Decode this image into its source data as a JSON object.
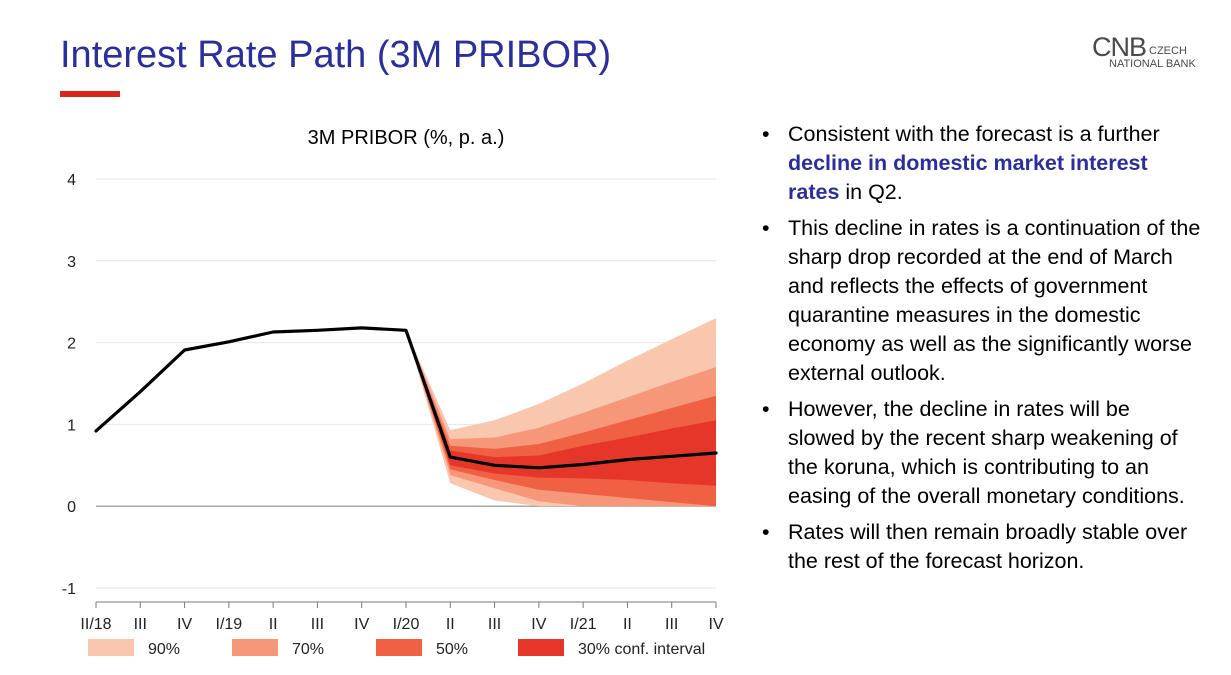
{
  "slide": {
    "title": "Interest Rate Path (3M PRIBOR)"
  },
  "logo": {
    "mark": "CNB",
    "line1": "CZECH",
    "line2": "NATIONAL BANK"
  },
  "bullets": [
    {
      "parts": [
        {
          "text": "Consistent with the forecast is a further ",
          "highlight": false
        },
        {
          "text": "decline in domestic market interest rates",
          "highlight": true
        },
        {
          "text": " in Q2.",
          "highlight": false
        }
      ]
    },
    {
      "parts": [
        {
          "text": "This decline in rates is a continuation of the sharp drop recorded at the end of March and reflects the effects of government quarantine measures in the domestic economy as well as the significantly worse external outlook.",
          "highlight": false
        }
      ]
    },
    {
      "parts": [
        {
          "text": "However, the decline in rates will be slowed by the recent sharp weakening of the koruna, which is contributing to an easing of the overall monetary conditions.",
          "highlight": false
        }
      ]
    },
    {
      "parts": [
        {
          "text": "Rates will then remain broadly stable over the rest of the forecast horizon.",
          "highlight": false
        }
      ]
    }
  ],
  "colors": {
    "title": "#2b2f9e",
    "accent": "#d9261c",
    "highlight": "#2b2f9e"
  },
  "chart_data": {
    "type": "line",
    "title": "3M PRIBOR (%, p. a.)",
    "xlabel": "",
    "ylabel": "",
    "categories": [
      "II/18",
      "III",
      "IV",
      "I/19",
      "II",
      "III",
      "IV",
      "I/20",
      "II",
      "III",
      "IV",
      "I/21",
      "II",
      "III",
      "IV"
    ],
    "ylim": [
      -1,
      4
    ],
    "yticks": [
      -1,
      0,
      1,
      2,
      3,
      4
    ],
    "grid": true,
    "legend_position": "bottom",
    "series": [
      {
        "values": [
          0.92,
          1.4,
          1.91,
          2.01,
          2.13,
          2.15,
          2.18,
          2.15,
          0.6,
          0.5,
          0.47,
          0.51,
          0.57,
          0.61,
          0.65
        ],
        "color": "#000000"
      }
    ],
    "fan": {
      "start_index": 7,
      "bands": [
        {
          "name": "90%",
          "color": "#f9c6ae",
          "lower": [
            2.15,
            0.28,
            0.07,
            0.0,
            0.0,
            0.0,
            0.0,
            0.0
          ],
          "upper": [
            2.15,
            0.93,
            1.05,
            1.25,
            1.5,
            1.78,
            2.04,
            2.3
          ]
        },
        {
          "name": "70%",
          "color": "#f6977a",
          "lower": [
            2.15,
            0.38,
            0.22,
            0.06,
            0.0,
            0.0,
            0.0,
            0.0
          ],
          "upper": [
            2.15,
            0.82,
            0.84,
            0.96,
            1.14,
            1.33,
            1.52,
            1.7
          ]
        },
        {
          "name": "50%",
          "color": "#f06144",
          "lower": [
            2.15,
            0.45,
            0.32,
            0.2,
            0.15,
            0.1,
            0.05,
            0.0
          ],
          "upper": [
            2.15,
            0.74,
            0.7,
            0.76,
            0.9,
            1.05,
            1.2,
            1.35
          ]
        },
        {
          "name": "30% conf. interval",
          "color": "#e6362a",
          "lower": [
            2.15,
            0.5,
            0.4,
            0.35,
            0.34,
            0.32,
            0.28,
            0.25
          ],
          "upper": [
            2.15,
            0.68,
            0.6,
            0.62,
            0.74,
            0.84,
            0.95,
            1.05
          ]
        }
      ]
    }
  }
}
